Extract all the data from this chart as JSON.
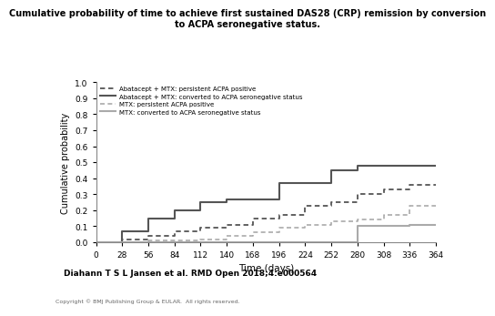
{
  "title": "Cumulative probability of time to achieve first sustained DAS28 (CRP) remission by conversion\nto ACPA seronegative status.",
  "xlabel": "Time (days)",
  "ylabel": "Cumulative probability",
  "xlim": [
    0,
    364
  ],
  "ylim": [
    0.0,
    1.0
  ],
  "xticks": [
    0,
    28,
    56,
    84,
    112,
    140,
    168,
    196,
    224,
    252,
    280,
    308,
    336,
    364
  ],
  "yticks": [
    0.0,
    0.1,
    0.2,
    0.3,
    0.4,
    0.5,
    0.6,
    0.7,
    0.8,
    0.9,
    1.0
  ],
  "background_color": "#ffffff",
  "citation": "Diahann T S L Jansen et al. RMD Open 2018;4:e000564",
  "copyright": "Copyright © BMJ Publishing Group & EULAR.  All rights reserved.",
  "rmd_box_color": "#1a7a3c",
  "curves": {
    "abatacept_mtx_persistent": {
      "label": "Abatacept + MTX: persistent ACPA positive",
      "style": "dotted",
      "color": "#555555",
      "linewidth": 1.3,
      "x": [
        0,
        14,
        28,
        28,
        42,
        56,
        56,
        84,
        84,
        112,
        112,
        126,
        140,
        140,
        154,
        168,
        168,
        182,
        196,
        196,
        210,
        224,
        224,
        238,
        252,
        252,
        266,
        280,
        280,
        294,
        308,
        308,
        322,
        336,
        336,
        350,
        364
      ],
      "y": [
        0.0,
        0.0,
        0.0,
        0.02,
        0.02,
        0.02,
        0.04,
        0.04,
        0.07,
        0.07,
        0.09,
        0.09,
        0.09,
        0.11,
        0.11,
        0.11,
        0.15,
        0.15,
        0.15,
        0.17,
        0.17,
        0.17,
        0.23,
        0.23,
        0.23,
        0.25,
        0.25,
        0.25,
        0.3,
        0.3,
        0.3,
        0.33,
        0.33,
        0.33,
        0.36,
        0.36,
        0.36
      ]
    },
    "abatacept_mtx_converted": {
      "label": "Abatacept + MTX: converted to ACPA seronegative status",
      "style": "solid",
      "color": "#555555",
      "linewidth": 1.5,
      "x": [
        0,
        28,
        28,
        56,
        56,
        84,
        84,
        112,
        112,
        140,
        140,
        196,
        196,
        224,
        224,
        252,
        252,
        280,
        280,
        364
      ],
      "y": [
        0.0,
        0.0,
        0.07,
        0.07,
        0.15,
        0.15,
        0.2,
        0.2,
        0.25,
        0.25,
        0.27,
        0.27,
        0.37,
        0.37,
        0.37,
        0.37,
        0.45,
        0.45,
        0.48,
        0.48
      ]
    },
    "mtx_persistent": {
      "label": "MTX: persistent ACPA positive",
      "style": "dotted",
      "color": "#aaaaaa",
      "linewidth": 1.2,
      "x": [
        0,
        56,
        56,
        112,
        112,
        140,
        140,
        168,
        168,
        196,
        196,
        224,
        224,
        252,
        252,
        280,
        280,
        308,
        308,
        336,
        336,
        350,
        364
      ],
      "y": [
        0.0,
        0.0,
        0.01,
        0.01,
        0.02,
        0.02,
        0.04,
        0.04,
        0.06,
        0.06,
        0.09,
        0.09,
        0.11,
        0.11,
        0.13,
        0.13,
        0.14,
        0.14,
        0.17,
        0.17,
        0.23,
        0.23,
        0.23
      ]
    },
    "mtx_converted": {
      "label": "MTX: converted to ACPA seronegative status",
      "style": "solid",
      "color": "#aaaaaa",
      "linewidth": 1.5,
      "x": [
        0,
        280,
        280,
        336,
        336,
        364
      ],
      "y": [
        0.0,
        0.0,
        0.1,
        0.1,
        0.11,
        0.11
      ]
    }
  }
}
